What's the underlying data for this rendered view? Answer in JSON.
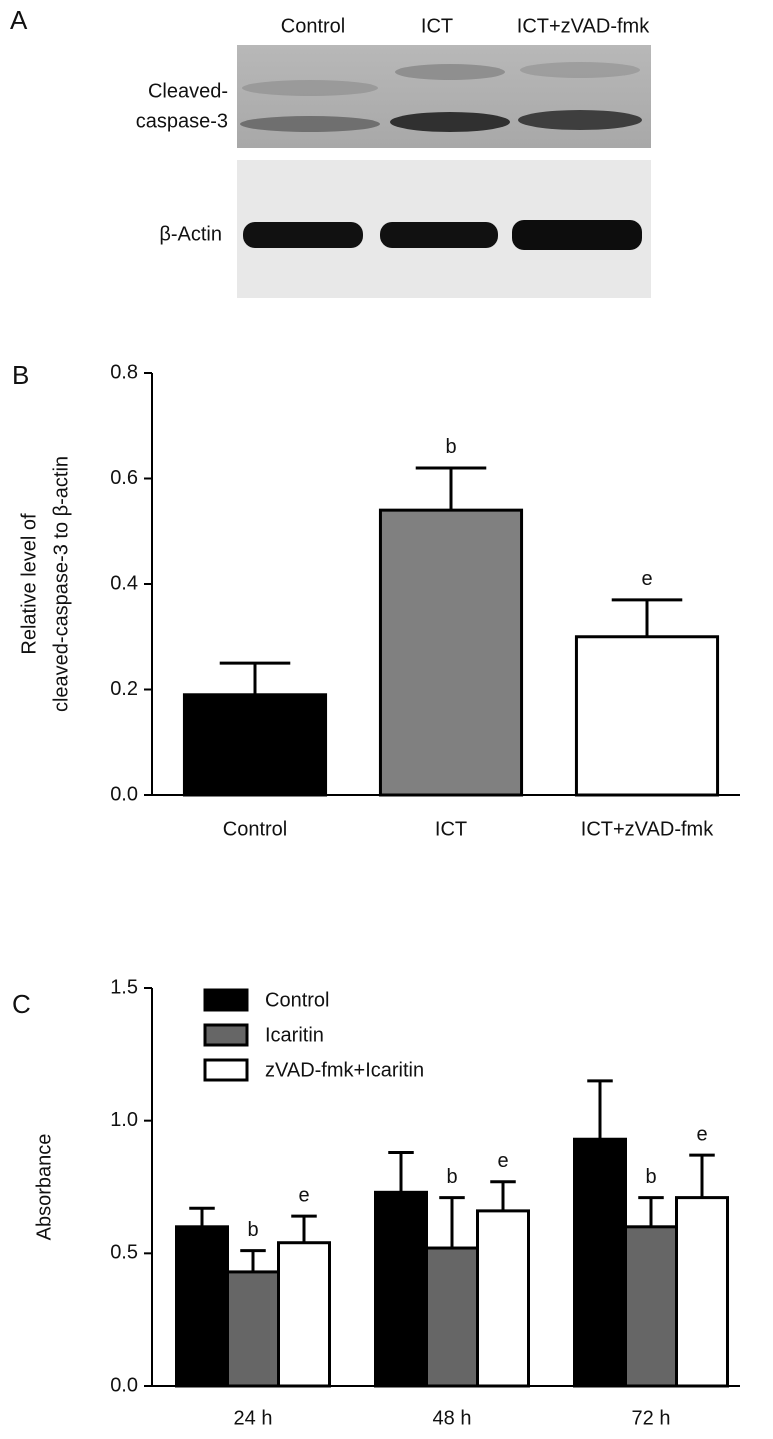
{
  "blot": {
    "panel": "A",
    "lanes": [
      "Control",
      "ICT",
      "ICT+zVAD-fmk"
    ],
    "rows": [
      [
        "Cleaved-",
        "caspase-3"
      ],
      [
        "β-Actin"
      ]
    ]
  },
  "chart_data": [
    {
      "type": "bar",
      "panel": "B",
      "ylabel": [
        "Relative level of",
        "cleaved-caspase-3 to β-actin"
      ],
      "categories": [
        "Control",
        "ICT",
        "ICT+zVAD-fmk"
      ],
      "values": [
        0.19,
        0.54,
        0.3
      ],
      "errors": [
        0.06,
        0.08,
        0.07
      ],
      "annotations": [
        null,
        "b",
        "e"
      ],
      "colors": [
        "#000000",
        "#808080",
        "#ffffff"
      ],
      "ylim": [
        0,
        0.8
      ],
      "yticks": [
        {
          "value": 0,
          "label": "0.0"
        },
        0.2,
        0.4,
        0.6,
        0.8
      ]
    },
    {
      "type": "grouped_bar",
      "panel": "C",
      "ylabel": "Absorbance",
      "categories": [
        "24 h",
        "48 h",
        "72 h"
      ],
      "series": [
        {
          "name": "Control",
          "color": "#000000",
          "values": [
            0.6,
            0.73,
            0.93
          ],
          "errors": [
            0.07,
            0.15,
            0.22
          ]
        },
        {
          "name": "Icaritin",
          "color": "#666666",
          "values": [
            0.43,
            0.52,
            0.6
          ],
          "errors": [
            0.08,
            0.19,
            0.11
          ],
          "annotations": [
            "b",
            "b",
            "b"
          ]
        },
        {
          "name": "zVAD-fmk+Icaritin",
          "color": "#ffffff",
          "values": [
            0.54,
            0.66,
            0.71
          ],
          "errors": [
            0.1,
            0.11,
            0.16
          ],
          "annotations": [
            "e",
            "e",
            "e"
          ]
        }
      ],
      "ylim": [
        0,
        1.5
      ],
      "yticks": [
        {
          "value": 0,
          "label": "0.0"
        },
        0.5,
        {
          "value": 1,
          "label": "1.0"
        },
        1.5
      ],
      "legend": "upper left"
    }
  ]
}
